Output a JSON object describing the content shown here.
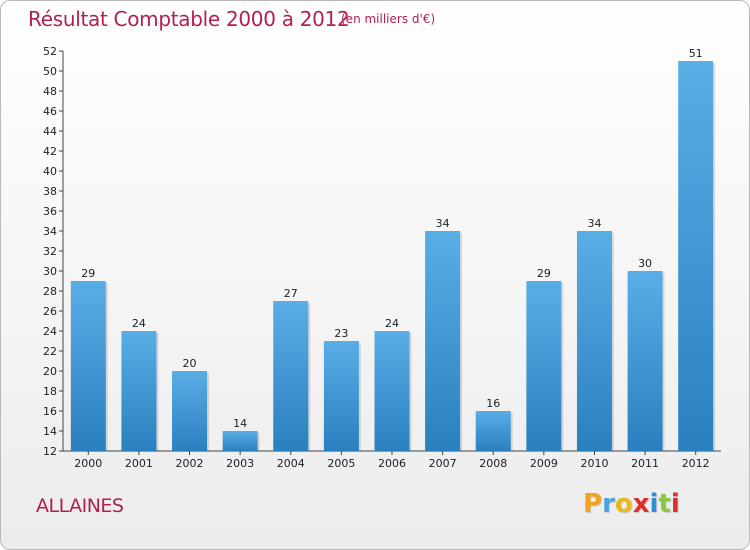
{
  "chart_data": {
    "type": "bar",
    "title": "Résultat Comptable 2000 à 2012",
    "subtitle": "(en milliers d'€)",
    "categories": [
      "2000",
      "2001",
      "2002",
      "2003",
      "2004",
      "2005",
      "2006",
      "2007",
      "2008",
      "2009",
      "2010",
      "2011",
      "2012"
    ],
    "values": [
      29,
      24,
      20,
      14,
      27,
      23,
      24,
      34,
      16,
      29,
      34,
      30,
      51
    ],
    "ylim": [
      12,
      52
    ],
    "yticks": [
      12,
      14,
      16,
      18,
      20,
      22,
      24,
      26,
      28,
      30,
      32,
      34,
      36,
      38,
      40,
      42,
      44,
      46,
      48,
      50,
      52
    ],
    "grid": false,
    "colors": {
      "bar_light": "#5aaee6",
      "bar_dark": "#2a7fbf",
      "text": "#b21f4f"
    }
  },
  "footer": {
    "town": "ALLAINES",
    "logo_letters": [
      {
        "ch": "P",
        "color": "#f2a21b"
      },
      {
        "ch": "r",
        "color": "#4aa3df"
      },
      {
        "ch": "o",
        "color": "#e8b81c"
      },
      {
        "ch": "x",
        "color": "#d9302c"
      },
      {
        "ch": "i",
        "color": "#2e8fd4"
      },
      {
        "ch": "t",
        "color": "#8cc63f"
      },
      {
        "ch": "i",
        "color": "#d9302c"
      }
    ]
  }
}
